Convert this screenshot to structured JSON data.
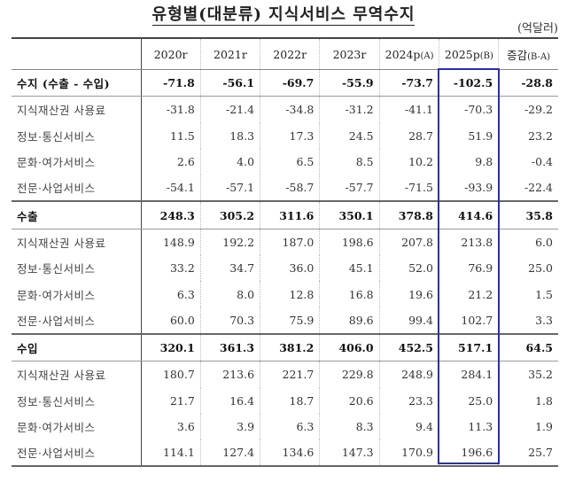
{
  "title": "유형별(대분류) 지식서비스 무역수지",
  "unit": "(억달러)",
  "highlight_color": "#2a2fb0",
  "headers": [
    {
      "main": "2020r",
      "sub": ""
    },
    {
      "main": "2021r",
      "sub": ""
    },
    {
      "main": "2022r",
      "sub": ""
    },
    {
      "main": "2023r",
      "sub": ""
    },
    {
      "main": "2024p",
      "sub": "(A)"
    },
    {
      "main": "2025p",
      "sub": "(B)"
    },
    {
      "main": "증감",
      "sub": "(B-A)"
    }
  ],
  "rows": [
    {
      "label": "수지 (수출 - 수입)",
      "bold": true,
      "values": [
        "-71.8",
        "-56.1",
        "-69.7",
        "-55.9",
        "-73.7",
        "-102.5",
        "-28.8"
      ]
    },
    {
      "label": "지식재산권 사용료",
      "values": [
        "-31.8",
        "-21.4",
        "-34.8",
        "-31.2",
        "-41.1",
        "-70.3",
        "-29.2"
      ]
    },
    {
      "label": "정보·통신서비스",
      "values": [
        "11.5",
        "18.3",
        "17.3",
        "24.5",
        "28.7",
        "51.9",
        "23.2"
      ]
    },
    {
      "label": "문화·여가서비스",
      "values": [
        "2.6",
        "4.0",
        "6.5",
        "8.5",
        "10.2",
        "9.8",
        "-0.4"
      ]
    },
    {
      "label": "전문·사업서비스",
      "values": [
        "-54.1",
        "-57.1",
        "-58.7",
        "-57.7",
        "-71.5",
        "-93.9",
        "-22.4"
      ]
    },
    {
      "label": "수출",
      "bold": true,
      "section": true,
      "values": [
        "248.3",
        "305.2",
        "311.6",
        "350.1",
        "378.8",
        "414.6",
        "35.8"
      ]
    },
    {
      "label": "지식재산권 사용료",
      "values": [
        "148.9",
        "192.2",
        "187.0",
        "198.6",
        "207.8",
        "213.8",
        "6.0"
      ]
    },
    {
      "label": "정보·통신서비스",
      "values": [
        "33.2",
        "34.7",
        "36.0",
        "45.1",
        "52.0",
        "76.9",
        "25.0"
      ]
    },
    {
      "label": "문화·여가서비스",
      "values": [
        "6.3",
        "8.0",
        "12.8",
        "16.8",
        "19.6",
        "21.2",
        "1.5"
      ]
    },
    {
      "label": "전문·사업서비스",
      "values": [
        "60.0",
        "70.3",
        "75.9",
        "89.6",
        "99.4",
        "102.7",
        "3.3"
      ]
    },
    {
      "label": "수입",
      "bold": true,
      "section": true,
      "values": [
        "320.1",
        "361.3",
        "381.2",
        "406.0",
        "452.5",
        "517.1",
        "64.5"
      ]
    },
    {
      "label": "지식재산권 사용료",
      "values": [
        "180.7",
        "213.6",
        "221.7",
        "229.8",
        "248.9",
        "284.1",
        "35.2"
      ]
    },
    {
      "label": "정보·통신서비스",
      "values": [
        "21.7",
        "16.4",
        "18.7",
        "20.6",
        "23.3",
        "25.0",
        "1.8"
      ]
    },
    {
      "label": "문화·여가서비스",
      "values": [
        "3.6",
        "3.9",
        "6.3",
        "8.3",
        "9.4",
        "11.3",
        "1.9"
      ]
    },
    {
      "label": "전문·사업서비스",
      "values": [
        "114.1",
        "127.4",
        "134.6",
        "147.3",
        "170.9",
        "196.6",
        "25.7"
      ]
    }
  ]
}
